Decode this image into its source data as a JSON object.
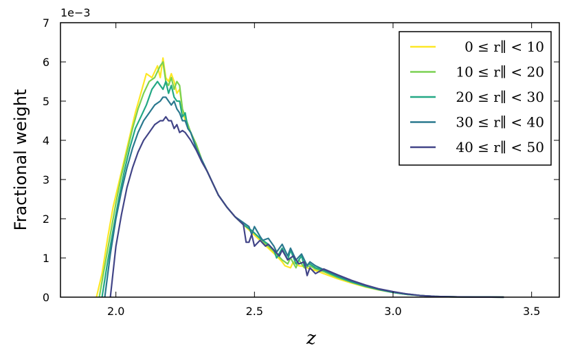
{
  "chart_data": {
    "type": "line",
    "title": "",
    "xlabel": "z",
    "ylabel": "Fractional weight",
    "y_multiplier": "1e−3",
    "xlim": [
      1.8,
      3.6
    ],
    "ylim": [
      0,
      7
    ],
    "x_ticks": [
      {
        "value": 2.0,
        "label": "2.0"
      },
      {
        "value": 2.5,
        "label": "2.5"
      },
      {
        "value": 3.0,
        "label": "3.0"
      },
      {
        "value": 3.5,
        "label": "3.5"
      }
    ],
    "y_ticks": [
      {
        "value": 0,
        "label": "0"
      },
      {
        "value": 1,
        "label": "1"
      },
      {
        "value": 2,
        "label": "2"
      },
      {
        "value": 3,
        "label": "3"
      },
      {
        "value": 4,
        "label": "4"
      },
      {
        "value": 5,
        "label": "5"
      },
      {
        "value": 6,
        "label": "6"
      },
      {
        "value": 7,
        "label": "7"
      }
    ],
    "grid": false,
    "legend_position": "top-right",
    "series": [
      {
        "name": "0 ≤ r∥ < 10",
        "color": "#fde725",
        "x": [
          1.93,
          1.95,
          1.97,
          1.99,
          2.01,
          2.03,
          2.05,
          2.07,
          2.09,
          2.11,
          2.13,
          2.15,
          2.16,
          2.17,
          2.18,
          2.19,
          2.2,
          2.21,
          2.22,
          2.23,
          2.24,
          2.25,
          2.27,
          2.29,
          2.31,
          2.33,
          2.35,
          2.37,
          2.4,
          2.43,
          2.46,
          2.49,
          2.52,
          2.55,
          2.58,
          2.6,
          2.61,
          2.63,
          2.64,
          2.66,
          2.68,
          2.7,
          2.72,
          2.75,
          2.8,
          2.85,
          2.9,
          2.95,
          3.0,
          3.05,
          3.1,
          3.15,
          3.2,
          3.25,
          3.3,
          3.35,
          3.4
        ],
        "y": [
          0.0,
          0.6,
          1.5,
          2.3,
          2.9,
          3.5,
          4.1,
          4.7,
          5.2,
          5.7,
          5.6,
          5.9,
          5.6,
          6.1,
          5.6,
          5.5,
          5.7,
          5.5,
          5.2,
          5.3,
          4.8,
          4.5,
          4.2,
          3.9,
          3.5,
          3.2,
          2.9,
          2.6,
          2.3,
          2.05,
          1.85,
          1.65,
          1.45,
          1.25,
          1.05,
          0.9,
          0.8,
          0.75,
          0.9,
          0.8,
          0.78,
          0.72,
          0.68,
          0.6,
          0.47,
          0.36,
          0.26,
          0.18,
          0.12,
          0.07,
          0.04,
          0.02,
          0.01,
          0.005,
          0.002,
          0.001,
          0.0
        ]
      },
      {
        "name": "10 ≤ r∥ < 20",
        "color": "#7ad151",
        "x": [
          1.94,
          1.96,
          1.98,
          2.0,
          2.02,
          2.04,
          2.06,
          2.08,
          2.1,
          2.12,
          2.14,
          2.16,
          2.17,
          2.18,
          2.19,
          2.2,
          2.21,
          2.22,
          2.23,
          2.24,
          2.25,
          2.27,
          2.29,
          2.31,
          2.33,
          2.35,
          2.37,
          2.4,
          2.43,
          2.46,
          2.49,
          2.52,
          2.55,
          2.58,
          2.6,
          2.62,
          2.63,
          2.65,
          2.66,
          2.68,
          2.7,
          2.72,
          2.75,
          2.8,
          2.85,
          2.9,
          2.95,
          3.0,
          3.05,
          3.1,
          3.15,
          3.2,
          3.25,
          3.3,
          3.35,
          3.4
        ],
        "y": [
          0.0,
          0.8,
          1.6,
          2.4,
          3.1,
          3.7,
          4.3,
          4.8,
          5.2,
          5.5,
          5.6,
          5.9,
          6.0,
          5.5,
          5.4,
          5.6,
          5.3,
          5.5,
          5.4,
          4.8,
          4.6,
          4.2,
          3.9,
          3.5,
          3.2,
          2.9,
          2.6,
          2.3,
          2.05,
          1.85,
          1.7,
          1.5,
          1.3,
          1.1,
          0.95,
          0.85,
          1.0,
          0.75,
          0.95,
          0.75,
          0.8,
          0.72,
          0.65,
          0.5,
          0.38,
          0.27,
          0.19,
          0.12,
          0.07,
          0.04,
          0.02,
          0.01,
          0.005,
          0.002,
          0.001,
          0.0
        ]
      },
      {
        "name": "20 ≤ r∥ < 30",
        "color": "#22a884",
        "x": [
          1.95,
          1.97,
          1.99,
          2.01,
          2.03,
          2.05,
          2.07,
          2.09,
          2.11,
          2.13,
          2.15,
          2.16,
          2.17,
          2.18,
          2.19,
          2.2,
          2.21,
          2.22,
          2.23,
          2.24,
          2.25,
          2.26,
          2.27,
          2.29,
          2.31,
          2.33,
          2.35,
          2.37,
          2.4,
          2.43,
          2.46,
          2.49,
          2.52,
          2.55,
          2.57,
          2.58,
          2.6,
          2.62,
          2.63,
          2.65,
          2.67,
          2.68,
          2.7,
          2.72,
          2.75,
          2.8,
          2.85,
          2.9,
          2.95,
          3.0,
          3.05,
          3.1,
          3.15,
          3.2,
          3.25,
          3.3,
          3.35,
          3.4
        ],
        "y": [
          0.0,
          0.9,
          1.7,
          2.5,
          3.2,
          3.8,
          4.3,
          4.6,
          4.9,
          5.3,
          5.5,
          5.4,
          5.3,
          5.5,
          5.2,
          5.4,
          5.1,
          5.0,
          5.0,
          4.6,
          4.7,
          4.3,
          4.2,
          3.8,
          3.5,
          3.2,
          2.9,
          2.6,
          2.3,
          2.05,
          1.85,
          1.7,
          1.5,
          1.35,
          1.2,
          1.0,
          1.25,
          0.95,
          1.2,
          0.85,
          1.05,
          0.8,
          0.85,
          0.75,
          0.68,
          0.52,
          0.39,
          0.28,
          0.19,
          0.12,
          0.07,
          0.04,
          0.02,
          0.01,
          0.005,
          0.002,
          0.001,
          0.0
        ]
      },
      {
        "name": "30 ≤ r∥ < 40",
        "color": "#2a788e",
        "x": [
          1.96,
          1.98,
          2.0,
          2.02,
          2.04,
          2.06,
          2.08,
          2.1,
          2.12,
          2.14,
          2.16,
          2.17,
          2.18,
          2.19,
          2.2,
          2.21,
          2.22,
          2.23,
          2.24,
          2.25,
          2.26,
          2.27,
          2.29,
          2.31,
          2.33,
          2.35,
          2.37,
          2.4,
          2.43,
          2.46,
          2.48,
          2.49,
          2.5,
          2.52,
          2.53,
          2.55,
          2.57,
          2.58,
          2.6,
          2.62,
          2.63,
          2.65,
          2.67,
          2.69,
          2.7,
          2.72,
          2.75,
          2.8,
          2.85,
          2.9,
          2.95,
          3.0,
          3.05,
          3.1,
          3.15,
          3.2,
          3.25,
          3.3,
          3.35,
          3.4
        ],
        "y": [
          0.0,
          1.1,
          2.0,
          2.7,
          3.3,
          3.8,
          4.2,
          4.5,
          4.7,
          4.9,
          5.0,
          5.1,
          5.1,
          5.0,
          4.9,
          5.0,
          4.8,
          4.7,
          4.5,
          4.5,
          4.3,
          4.2,
          3.8,
          3.5,
          3.2,
          2.9,
          2.6,
          2.3,
          2.05,
          1.9,
          1.8,
          1.6,
          1.8,
          1.55,
          1.45,
          1.5,
          1.3,
          1.15,
          1.35,
          1.05,
          1.25,
          0.95,
          1.1,
          0.8,
          0.9,
          0.8,
          0.7,
          0.55,
          0.41,
          0.3,
          0.2,
          0.13,
          0.08,
          0.04,
          0.02,
          0.01,
          0.005,
          0.002,
          0.001,
          0.0
        ]
      },
      {
        "name": "40 ≤ r∥ < 50",
        "color": "#414487",
        "x": [
          1.98,
          2.0,
          2.02,
          2.04,
          2.06,
          2.08,
          2.1,
          2.12,
          2.14,
          2.16,
          2.17,
          2.18,
          2.19,
          2.2,
          2.21,
          2.22,
          2.23,
          2.24,
          2.25,
          2.26,
          2.27,
          2.29,
          2.31,
          2.33,
          2.35,
          2.37,
          2.4,
          2.43,
          2.46,
          2.47,
          2.48,
          2.49,
          2.5,
          2.52,
          2.54,
          2.55,
          2.57,
          2.59,
          2.6,
          2.62,
          2.64,
          2.66,
          2.68,
          2.69,
          2.7,
          2.72,
          2.75,
          2.8,
          2.85,
          2.9,
          2.95,
          3.0,
          3.05,
          3.1,
          3.15,
          3.2,
          3.25,
          3.3,
          3.35,
          3.4
        ],
        "y": [
          0.0,
          1.3,
          2.1,
          2.8,
          3.3,
          3.7,
          4.0,
          4.2,
          4.4,
          4.5,
          4.5,
          4.6,
          4.5,
          4.5,
          4.3,
          4.4,
          4.2,
          4.25,
          4.2,
          4.1,
          4.0,
          3.75,
          3.45,
          3.2,
          2.9,
          2.6,
          2.3,
          2.05,
          1.85,
          1.4,
          1.4,
          1.6,
          1.3,
          1.45,
          1.3,
          1.35,
          1.2,
          1.05,
          1.2,
          0.95,
          1.05,
          0.85,
          0.9,
          0.55,
          0.75,
          0.6,
          0.72,
          0.57,
          0.43,
          0.31,
          0.21,
          0.14,
          0.08,
          0.04,
          0.02,
          0.01,
          0.005,
          0.002,
          0.001,
          0.0
        ]
      }
    ]
  }
}
